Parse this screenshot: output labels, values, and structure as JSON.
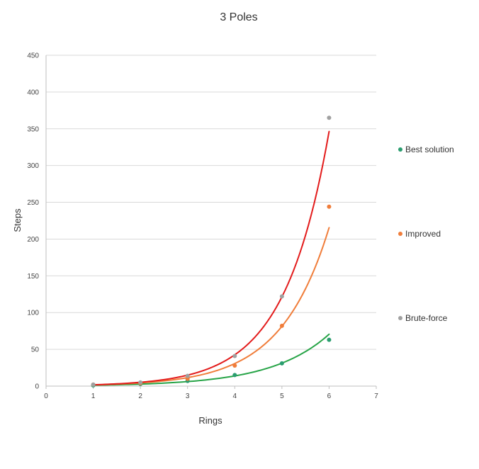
{
  "chart_data": {
    "type": "scatter",
    "title": "3 Poles",
    "xlabel": "Rings",
    "ylabel": "Steps",
    "xlim": [
      0,
      7
    ],
    "ylim": [
      0,
      450
    ],
    "x_ticks": [
      0,
      1,
      2,
      3,
      4,
      5,
      6,
      7
    ],
    "y_ticks": [
      0,
      50,
      100,
      150,
      200,
      250,
      300,
      350,
      400,
      450
    ],
    "grid": "horizontal",
    "legend_position": "right",
    "x": [
      1,
      2,
      3,
      4,
      5,
      6
    ],
    "series": [
      {
        "name": "Best solution",
        "color": "#2a9d6f",
        "values": [
          1,
          3,
          7,
          15,
          31,
          63
        ],
        "trendline": {
          "color": "#27a447",
          "type": "exponential"
        }
      },
      {
        "name": "Improved",
        "color": "#f07d3a",
        "values": [
          2,
          4,
          10,
          28,
          82,
          244
        ],
        "trendline": {
          "color": "#f07d3a",
          "type": "exponential"
        }
      },
      {
        "name": "Brute-force",
        "color": "#a0a0a0",
        "values": [
          2,
          5,
          14,
          41,
          122,
          365
        ],
        "trendline": {
          "color": "#e31b1b",
          "type": "exponential"
        }
      }
    ]
  }
}
